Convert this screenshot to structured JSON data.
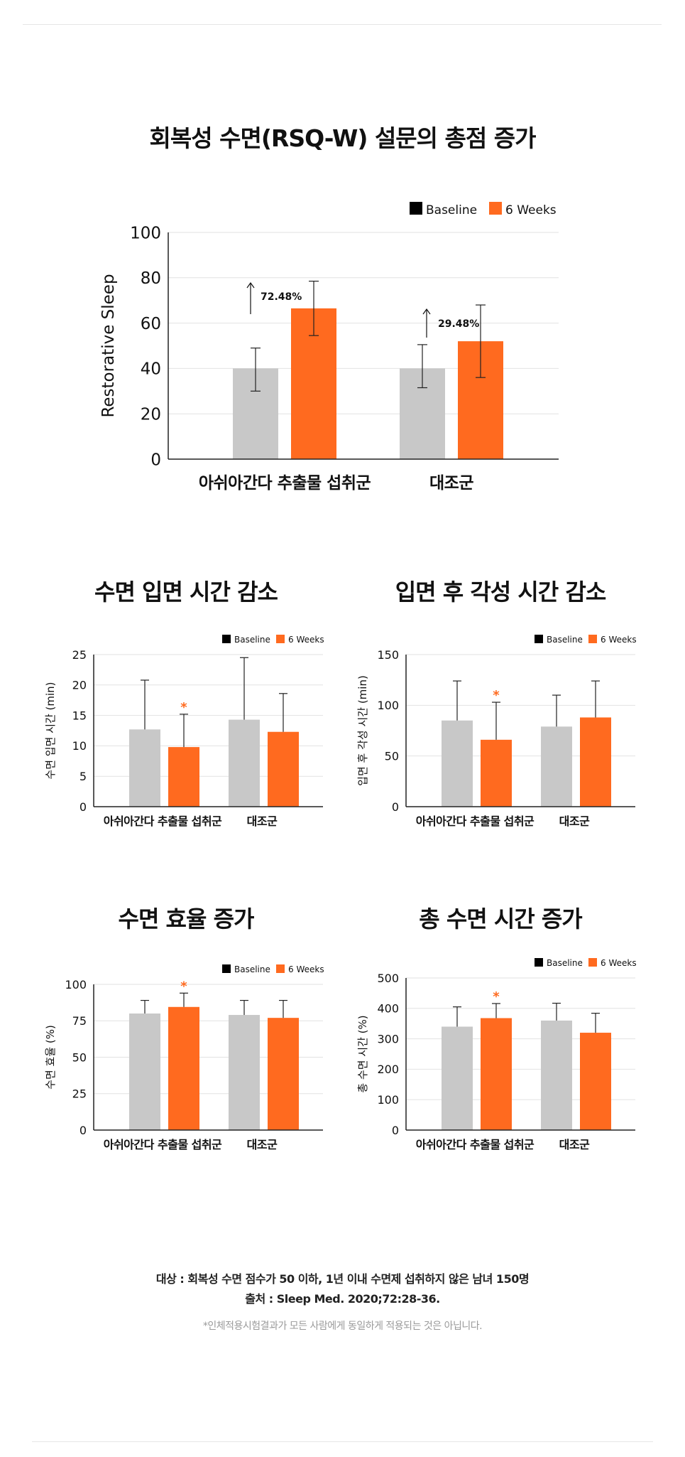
{
  "colors": {
    "baseline": "#c8c8c8",
    "six_weeks": "#ff6a1f",
    "legend_baseline": "#000000",
    "asterisk": "#ff6a1f",
    "grid": "#e2e2e2",
    "axis": "#222222"
  },
  "footer": {
    "target": "대상 : 회복성 수면 점수가 50 이하, 1년 이내 수면제 섭취하지 않은 남녀 150명",
    "source": "출처 : Sleep Med. 2020;72:28-36.",
    "disclaimer": "*인체적용시험결과가 모든 사람에게 동일하게 적용되는 것은 아닙니다."
  },
  "chart_data": [
    {
      "id": "rsq",
      "type": "bar",
      "title": "회복성 수면(RSQ-W) 설문의 총점 증가",
      "ylabel": "Restorative Sleep",
      "ylim": [
        0,
        100
      ],
      "yticks": [
        0,
        20,
        40,
        60,
        80,
        100
      ],
      "categories": [
        "아쉬아간다 추출물 섭취군",
        "대조군"
      ],
      "series": [
        {
          "name": "Baseline",
          "values": [
            40,
            40
          ],
          "err_low": [
            30,
            31.5
          ],
          "err_high": [
            49,
            50.5
          ]
        },
        {
          "name": "6 Weeks",
          "values": [
            66.5,
            52
          ],
          "err_low": [
            54.5,
            36
          ],
          "err_high": [
            78.5,
            68
          ]
        }
      ],
      "annotations": [
        "72.48%",
        "29.48%"
      ],
      "legend": "top-right",
      "grid": true
    },
    {
      "id": "latency",
      "type": "bar",
      "title": "수면 입면 시간 감소",
      "ylabel": "수면 입면 시간 (min)",
      "ylim": [
        0,
        25
      ],
      "yticks": [
        0,
        5,
        10,
        15,
        20,
        25
      ],
      "categories": [
        "아쉬아간다 추출물 섭취군",
        "대조군"
      ],
      "series": [
        {
          "name": "Baseline",
          "values": [
            12.7,
            14.3
          ],
          "err_high": [
            20.8,
            24.5
          ]
        },
        {
          "name": "6 Weeks",
          "values": [
            9.8,
            12.3
          ],
          "err_high": [
            15.2,
            18.6
          ],
          "asterisk": [
            true,
            false
          ]
        }
      ],
      "asterisk_label": "*",
      "legend": "top-right",
      "grid": true
    },
    {
      "id": "waso",
      "type": "bar",
      "title": "입면 후 각성 시간 감소",
      "ylabel": "입면 후 각성 시간 (min)",
      "ylim": [
        0,
        150
      ],
      "yticks": [
        0,
        50,
        100,
        150
      ],
      "categories": [
        "아쉬아간다 추출물 섭취군",
        "대조군"
      ],
      "series": [
        {
          "name": "Baseline",
          "values": [
            85,
            79
          ],
          "err_high": [
            124,
            110
          ]
        },
        {
          "name": "6 Weeks",
          "values": [
            66,
            88
          ],
          "err_high": [
            103,
            124
          ],
          "asterisk": [
            true,
            false
          ]
        }
      ],
      "asterisk_label": "*",
      "legend": "top-right",
      "grid": true
    },
    {
      "id": "efficiency",
      "type": "bar",
      "title": "수면 효율 증가",
      "ylabel": "수면 효율 (%)",
      "ylim": [
        0,
        100
      ],
      "yticks": [
        0,
        25,
        50,
        75,
        100
      ],
      "categories": [
        "아쉬아간다 추출물 섭취군",
        "대조군"
      ],
      "series": [
        {
          "name": "Baseline",
          "values": [
            80,
            79
          ],
          "err_high": [
            89,
            89
          ]
        },
        {
          "name": "6 Weeks",
          "values": [
            84.5,
            77
          ],
          "err_high": [
            94,
            89
          ],
          "asterisk": [
            true,
            false
          ]
        }
      ],
      "asterisk_label": "*",
      "legend": "top-right",
      "grid": true
    },
    {
      "id": "total",
      "type": "bar",
      "title": "총 수면 시간 증가",
      "ylabel": "총 수면 시간 (%)",
      "ylim": [
        0,
        500
      ],
      "yticks": [
        0,
        100,
        200,
        300,
        400,
        500
      ],
      "categories": [
        "아쉬아간다 추출물 섭취군",
        "대조군"
      ],
      "series": [
        {
          "name": "Baseline",
          "values": [
            340,
            360
          ],
          "err_high": [
            405,
            417
          ]
        },
        {
          "name": "6 Weeks",
          "values": [
            368,
            320
          ],
          "err_high": [
            416,
            384
          ],
          "asterisk": [
            true,
            false
          ]
        }
      ],
      "asterisk_label": "*",
      "legend": "top-right",
      "grid": true
    }
  ]
}
